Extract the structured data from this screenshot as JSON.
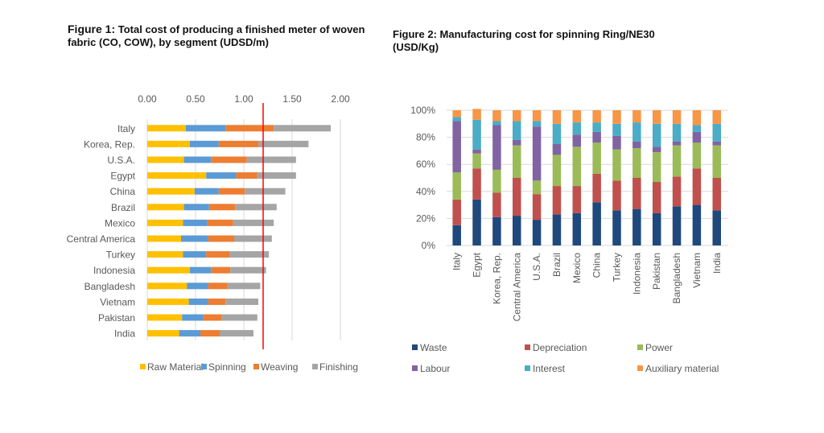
{
  "colors": {
    "raw_material": "#FFC000",
    "spinning": "#5B9BD5",
    "weaving": "#ED7D31",
    "finishing": "#A5A5A5",
    "reference_line": "#FF0000",
    "waste": "#1F497D",
    "depreciation": "#C0504D",
    "power": "#9BBB59",
    "labour": "#8064A2",
    "interest": "#4BACC6",
    "auxiliary_material": "#F79646"
  },
  "chart_data": [
    {
      "type": "bar",
      "orientation": "horizontal",
      "stacked": true,
      "title_prefix": "Figure 1:",
      "title": "Total cost of producing a finished meter of woven fabric (CO, COW), by segment (UDSD/m)",
      "xlim": [
        0,
        2
      ],
      "xticks": [
        "0.00",
        "0.50",
        "1.00",
        "1.50",
        "2.00"
      ],
      "grid": true,
      "legend_position": "bottom",
      "reference_line_x": 1.2,
      "categories": [
        "Italy",
        "Korea, Rep.",
        "U.S.A.",
        "Egypt",
        "China",
        "Brazil",
        "Mexico",
        "Central America",
        "Turkey",
        "Indonesia",
        "Bangladesh",
        "Vietnam",
        "Pakistan",
        "India"
      ],
      "series": [
        {
          "name": "Raw Material",
          "values": [
            0.4,
            0.44,
            0.38,
            0.61,
            0.49,
            0.38,
            0.37,
            0.35,
            0.37,
            0.44,
            0.41,
            0.43,
            0.36,
            0.33
          ]
        },
        {
          "name": "Spinning",
          "values": [
            0.41,
            0.3,
            0.28,
            0.31,
            0.25,
            0.26,
            0.25,
            0.28,
            0.24,
            0.22,
            0.22,
            0.2,
            0.22,
            0.22
          ]
        },
        {
          "name": "Weaving",
          "values": [
            0.5,
            0.41,
            0.37,
            0.22,
            0.27,
            0.27,
            0.27,
            0.27,
            0.24,
            0.2,
            0.2,
            0.18,
            0.19,
            0.2
          ]
        },
        {
          "name": "Finishing",
          "values": [
            0.59,
            0.52,
            0.51,
            0.4,
            0.42,
            0.43,
            0.42,
            0.39,
            0.41,
            0.37,
            0.34,
            0.34,
            0.37,
            0.35
          ]
        }
      ]
    },
    {
      "type": "bar",
      "orientation": "vertical",
      "stacked": true,
      "percent": true,
      "title_prefix": "Figure 2:",
      "title": "Manufacturing cost for spinning Ring/NE30 (USD/Kg)",
      "ylim": [
        0,
        100
      ],
      "yticks": [
        "0%",
        "20%",
        "40%",
        "60%",
        "80%",
        "100%"
      ],
      "grid": true,
      "legend_position": "bottom",
      "categories": [
        "Italy",
        "Egypt",
        "Korea, Rep.",
        "Central America",
        "U.S.A.",
        "Brazil",
        "Mexico",
        "China",
        "Turkey",
        "Indonesia",
        "Pakistan",
        "Bangladesh",
        "Vietnam",
        "India"
      ],
      "series": [
        {
          "name": "Waste",
          "values": [
            15,
            34,
            21,
            22,
            19,
            23,
            24,
            32,
            26,
            27,
            24,
            29,
            30,
            26
          ]
        },
        {
          "name": "Depreciation",
          "values": [
            19,
            23,
            18,
            28,
            19,
            21,
            20,
            21,
            22,
            23,
            23,
            22,
            27,
            24
          ]
        },
        {
          "name": "Power",
          "values": [
            20,
            11,
            17,
            24,
            10,
            23,
            29,
            23,
            23,
            22,
            22,
            23,
            19,
            24
          ]
        },
        {
          "name": "Labour",
          "values": [
            38,
            3,
            33,
            4,
            40,
            8,
            9,
            8,
            10,
            5,
            4,
            3,
            8,
            3
          ]
        },
        {
          "name": "Interest",
          "values": [
            3,
            22,
            3,
            14,
            4,
            15,
            9,
            7,
            9,
            14,
            17,
            13,
            5,
            13
          ]
        },
        {
          "name": "Auxiliary material",
          "values": [
            5,
            8,
            8,
            8,
            8,
            10,
            9,
            9,
            10,
            9,
            10,
            10,
            11,
            10
          ]
        }
      ]
    }
  ]
}
